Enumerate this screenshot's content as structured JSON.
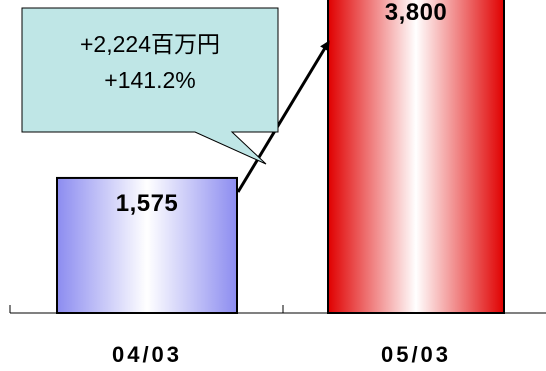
{
  "chart_data": {
    "type": "bar",
    "categories": [
      "04/03",
      "05/03"
    ],
    "values": [
      1575,
      3800
    ],
    "value_labels": [
      "1,575",
      "3,800"
    ],
    "ylim": [
      0,
      4000
    ],
    "grid": false,
    "legend": "none",
    "annotation": {
      "line1": "+2,224百万円",
      "line2": "+141.2%"
    },
    "colors": {
      "bar_1": "#8c8cf0",
      "bar_2": "#e00000",
      "callout_fill": "#bfe6e6",
      "arrow": "#000000"
    }
  }
}
